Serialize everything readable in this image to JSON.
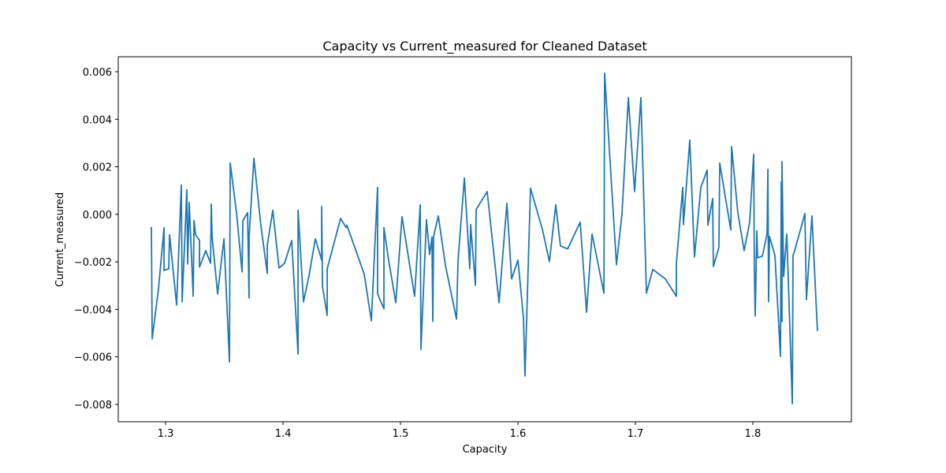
{
  "chart_data": {
    "type": "line",
    "title": "Capacity vs Current_measured for Cleaned Dataset",
    "xlabel": "Capacity",
    "ylabel": "Current_measured",
    "color": "#1f77b4",
    "x": [
      1.2879,
      1.2886,
      1.294,
      1.2987,
      1.2987,
      1.3027,
      1.3034,
      1.3094,
      1.3134,
      1.3141,
      1.3181,
      1.3188,
      1.3201,
      1.3235,
      1.3242,
      1.3255,
      1.3289,
      1.3289,
      1.3342,
      1.3383,
      1.3389,
      1.3396,
      1.3443,
      1.3497,
      1.3544,
      1.355,
      1.3604,
      1.3651,
      1.3658,
      1.3698,
      1.3711,
      1.3711,
      1.3752,
      1.3812,
      1.3866,
      1.3866,
      1.3913,
      1.3966,
      1.4013,
      1.4074,
      1.4128,
      1.4128,
      1.4174,
      1.4221,
      1.4275,
      1.4329,
      1.4329,
      1.4336,
      1.4376,
      1.4376,
      1.449,
      1.4537,
      1.4544,
      1.4691,
      1.4752,
      1.4805,
      1.4805,
      1.4859,
      1.4859,
      1.4899,
      1.496,
      1.5013,
      1.512,
      1.5168,
      1.5174,
      1.5221,
      1.5248,
      1.5268,
      1.5275,
      1.5282,
      1.5322,
      1.5383,
      1.5477,
      1.549,
      1.5544,
      1.559,
      1.5597,
      1.5638,
      1.5644,
      1.5738,
      1.5839,
      1.5906,
      1.5946,
      1.6,
      1.6047,
      1.606,
      1.6107,
      1.6208,
      1.6268,
      1.6322,
      1.6362,
      1.6423,
      1.653,
      1.6584,
      1.6631,
      1.6732,
      1.6738,
      1.6839,
      1.6886,
      1.694,
      1.6993,
      1.7047,
      1.7094,
      1.7148,
      1.7255,
      1.7349,
      1.7349,
      1.7403,
      1.7409,
      1.7463,
      1.7503,
      1.7557,
      1.7611,
      1.7617,
      1.7658,
      1.7664,
      1.7711,
      1.7718,
      1.7812,
      1.7819,
      1.7872,
      1.7926,
      1.7973,
      1.8007,
      1.8013,
      1.802,
      1.8034,
      1.804,
      1.8081,
      1.8121,
      1.8128,
      1.8134,
      1.8141,
      1.8188,
      1.8235,
      1.8242,
      1.8248,
      1.8248,
      1.8262,
      1.8289,
      1.8336,
      1.8342,
      1.8356,
      1.8443,
      1.8456,
      1.8503,
      1.855
    ],
    "values": [
      -0.00053,
      -0.00524,
      -0.00312,
      -0.00056,
      -0.00236,
      -0.00229,
      -0.00086,
      -0.00382,
      0.00123,
      -0.00368,
      0.00103,
      -0.00209,
      0.0005,
      -0.00345,
      -0.00027,
      -0.00086,
      -0.0011,
      -0.00222,
      -0.00153,
      -0.00206,
      0.00043,
      -0.00093,
      -0.00335,
      -0.00103,
      -0.00621,
      0.00216,
      7e-05,
      -0.00242,
      -0.00027,
      7e-05,
      -0.00352,
      -0.00093,
      0.00236,
      -0.0005,
      -0.00249,
      -0.00129,
      0.00017,
      -0.00226,
      -0.00206,
      -0.0011,
      -0.00588,
      0.00017,
      -0.00368,
      -0.00259,
      -0.00103,
      -0.00193,
      0.00033,
      -0.00305,
      -0.00425,
      -0.00229,
      -0.00017,
      -0.00056,
      -0.00046,
      -0.00252,
      -0.00448,
      0.00113,
      -0.00335,
      -0.00398,
      -0.00056,
      -0.00193,
      -0.00372,
      -0.0001,
      -0.00345,
      0.0004,
      -0.00568,
      -0.00023,
      -0.00169,
      -0.00096,
      -0.00451,
      -0.00093,
      -7e-05,
      -0.00216,
      -0.00441,
      -0.00193,
      0.00153,
      -0.00229,
      -0.00043,
      -0.00299,
      0.0002,
      0.00096,
      -0.00372,
      0.00046,
      -0.00272,
      -0.00193,
      -0.00435,
      -0.0068,
      0.0011,
      -0.00063,
      -0.00199,
      0.0004,
      -0.00133,
      -0.00146,
      -0.00033,
      -0.00412,
      -0.00083,
      -0.00332,
      0.00594,
      -0.00212,
      3e-05,
      0.00491,
      0.00096,
      0.00491,
      -0.00332,
      -0.00232,
      -0.00272,
      -0.00345,
      -0.00206,
      0.00113,
      -0.00043,
      0.00312,
      -0.00179,
      0.00113,
      0.00186,
      -0.00046,
      0.00066,
      -0.00219,
      -0.00139,
      0.00216,
      -0.00066,
      0.00285,
      7e-05,
      -0.00153,
      -0.00033,
      0.00252,
      -0.00236,
      -0.00428,
      -0.0007,
      -0.00183,
      -0.00176,
      -0.00083,
      0.00189,
      -0.00368,
      -0.00093,
      -0.00173,
      -0.00598,
      0.00136,
      -0.00451,
      0.00222,
      -0.00262,
      -0.00083,
      -0.00797,
      -0.00173,
      -0.00153,
      3e-05,
      -0.00359,
      -7e-05,
      -0.00491
    ],
    "xlim": [
      1.2597,
      1.8839
    ],
    "xticks": [
      1.3,
      1.4,
      1.5,
      1.6,
      1.7,
      1.8
    ],
    "ylim": [
      -0.00873,
      0.00663
    ],
    "yticks": [
      {
        "value": -0.008,
        "label": "−0.008"
      },
      {
        "value": -0.006,
        "label": "−0.006"
      },
      {
        "value": -0.004,
        "label": "−0.004"
      },
      {
        "value": -0.002,
        "label": "−0.002"
      },
      {
        "value": 0,
        "label": "0.000"
      },
      {
        "value": 0.002,
        "label": "0.002"
      },
      {
        "value": 0.004,
        "label": "0.004"
      },
      {
        "value": 0.006,
        "label": "0.006"
      }
    ],
    "grid": false
  }
}
